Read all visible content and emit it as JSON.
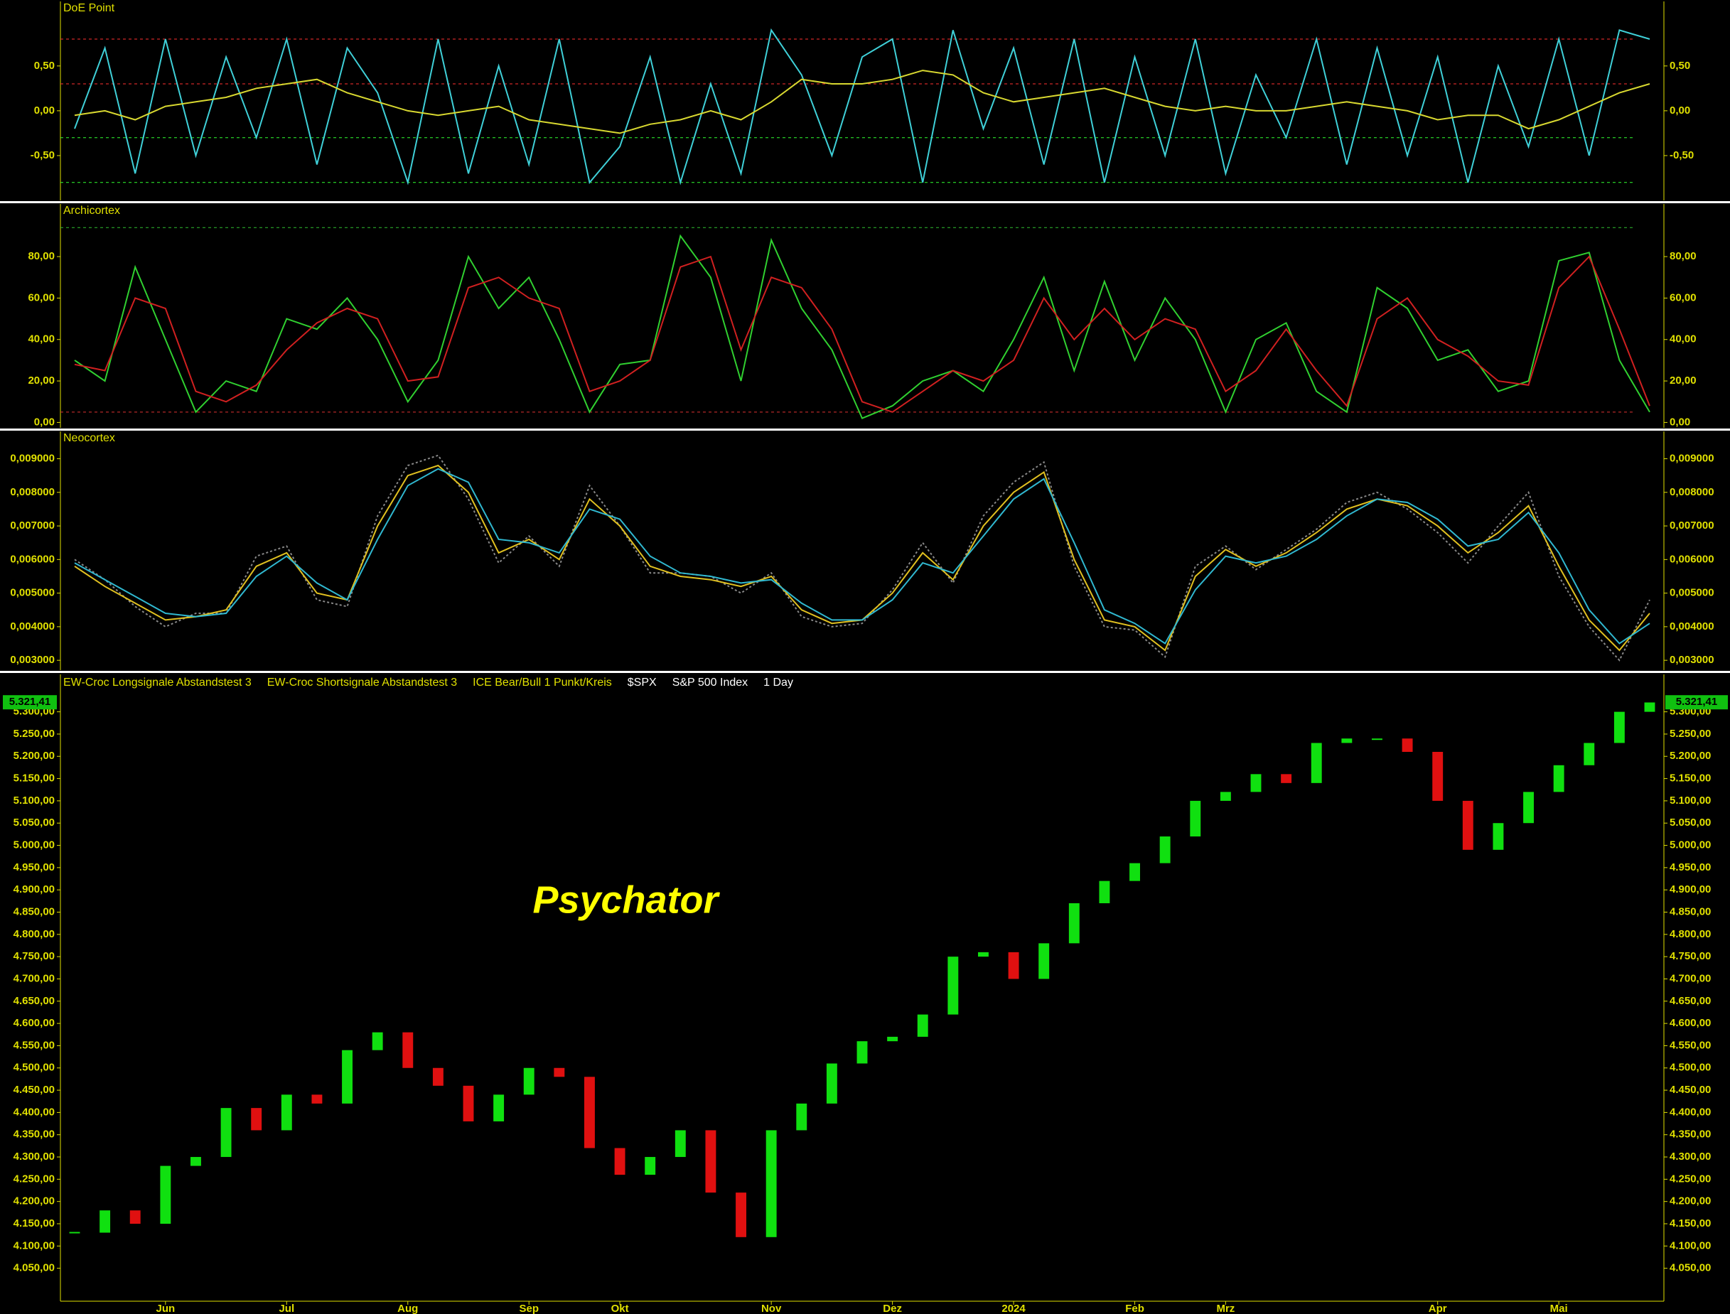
{
  "chart_data": [
    {
      "type": "line",
      "title": "DoE Point",
      "ylim": [
        -1.0,
        1.22
      ],
      "yticks": [
        {
          "value": -0.5,
          "label": "-0,50"
        },
        {
          "value": 0,
          "label": "0,00"
        },
        {
          "value": 0.5,
          "label": "0,50"
        }
      ],
      "levels": [
        {
          "value": 0.8,
          "color": "#ff3030"
        },
        {
          "value": 0.3,
          "color": "#ff3030"
        },
        {
          "value": -0.3,
          "color": "#30ff30"
        },
        {
          "value": -0.8,
          "color": "#30ff30"
        }
      ],
      "series": [
        {
          "color": "#3fd0d8",
          "values": [
            -0.2,
            0.7,
            -0.7,
            0.8,
            -0.5,
            0.6,
            -0.3,
            0.8,
            -0.6,
            0.7,
            0.2,
            -0.8,
            0.8,
            -0.7,
            0.5,
            -0.6,
            0.8,
            -0.8,
            -0.4,
            0.6,
            -0.8,
            0.3,
            -0.7,
            0.9,
            0.4,
            -0.5,
            0.6,
            0.8,
            -0.8,
            0.9,
            -0.2,
            0.7,
            -0.6,
            0.8,
            -0.8,
            0.6,
            -0.5,
            0.8,
            -0.7,
            0.4,
            -0.3,
            0.8,
            -0.6,
            0.7,
            -0.5,
            0.6,
            -0.8,
            0.5,
            -0.4,
            0.8,
            -0.5,
            0.9,
            0.8
          ]
        },
        {
          "color": "#d8d830",
          "values": [
            -0.05,
            0.0,
            -0.1,
            0.05,
            0.1,
            0.15,
            0.25,
            0.3,
            0.35,
            0.2,
            0.1,
            0.0,
            -0.05,
            0.0,
            0.05,
            -0.1,
            -0.15,
            -0.2,
            -0.25,
            -0.15,
            -0.1,
            0.0,
            -0.1,
            0.1,
            0.35,
            0.3,
            0.3,
            0.35,
            0.45,
            0.4,
            0.2,
            0.1,
            0.15,
            0.2,
            0.25,
            0.15,
            0.05,
            0.0,
            0.05,
            0.0,
            0.0,
            0.05,
            0.1,
            0.05,
            0.0,
            -0.1,
            -0.05,
            -0.05,
            -0.2,
            -0.1,
            0.05,
            0.2,
            0.3
          ]
        }
      ]
    },
    {
      "type": "line",
      "title": "Archicortex",
      "ylim": [
        -2.6,
        105.4
      ],
      "yticks": [
        {
          "value": 0,
          "label": "0,00"
        },
        {
          "value": 20,
          "label": "20,00"
        },
        {
          "value": 40,
          "label": "40,00"
        },
        {
          "value": 60,
          "label": "60,00"
        },
        {
          "value": 80,
          "label": "80,00"
        }
      ],
      "levels": [
        {
          "value": 94,
          "color": "#30c030"
        },
        {
          "value": 5,
          "color": "#e03030"
        }
      ],
      "series": [
        {
          "color": "#30d030",
          "values": [
            30,
            20,
            75,
            40,
            5,
            20,
            15,
            50,
            45,
            60,
            40,
            10,
            30,
            80,
            55,
            70,
            40,
            5,
            28,
            30,
            90,
            70,
            20,
            88,
            55,
            35,
            2,
            8,
            20,
            25,
            15,
            40,
            70,
            25,
            68,
            30,
            60,
            40,
            5,
            40,
            48,
            15,
            5,
            65,
            55,
            30,
            35,
            15,
            20,
            78,
            82,
            30,
            5
          ]
        },
        {
          "color": "#d02020",
          "values": [
            28,
            25,
            60,
            55,
            15,
            10,
            18,
            35,
            48,
            55,
            50,
            20,
            22,
            65,
            70,
            60,
            55,
            15,
            20,
            30,
            75,
            80,
            35,
            70,
            65,
            45,
            10,
            5,
            15,
            25,
            20,
            30,
            60,
            40,
            55,
            40,
            50,
            45,
            15,
            25,
            45,
            25,
            8,
            50,
            60,
            40,
            32,
            20,
            18,
            65,
            80,
            45,
            8
          ]
        }
      ]
    },
    {
      "type": "line",
      "title": "Neocortex",
      "ylim": [
        0.002707,
        0.009815
      ],
      "yticks": [
        {
          "value": 0.003,
          "label": "0,003000"
        },
        {
          "value": 0.004,
          "label": "0,004000"
        },
        {
          "value": 0.005,
          "label": "0,005000"
        },
        {
          "value": 0.006,
          "label": "0,006000"
        },
        {
          "value": 0.007,
          "label": "0,007000"
        },
        {
          "value": 0.008,
          "label": "0,008000"
        },
        {
          "value": 0.009,
          "label": "0,009000"
        }
      ],
      "series": [
        {
          "color": "#888888",
          "dash": true,
          "values": [
            0.006,
            0.0054,
            0.0046,
            0.004,
            0.0044,
            0.0044,
            0.0061,
            0.0064,
            0.0048,
            0.0046,
            0.0073,
            0.0088,
            0.0091,
            0.0078,
            0.0059,
            0.0067,
            0.0058,
            0.0082,
            0.007,
            0.0056,
            0.0056,
            0.0055,
            0.005,
            0.0056,
            0.0043,
            0.004,
            0.0041,
            0.0051,
            0.0065,
            0.0053,
            0.0073,
            0.0083,
            0.0089,
            0.0058,
            0.004,
            0.0039,
            0.0031,
            0.0058,
            0.0064,
            0.0057,
            0.0063,
            0.0069,
            0.0077,
            0.008,
            0.0075,
            0.0068,
            0.0059,
            0.007,
            0.008,
            0.0055,
            0.004,
            0.003,
            0.0048
          ]
        },
        {
          "color": "#e0c020",
          "values": [
            0.0058,
            0.0052,
            0.0047,
            0.0042,
            0.0043,
            0.0045,
            0.0058,
            0.0062,
            0.005,
            0.0048,
            0.007,
            0.0085,
            0.0088,
            0.008,
            0.0062,
            0.0066,
            0.006,
            0.0078,
            0.007,
            0.0058,
            0.0055,
            0.0054,
            0.0052,
            0.0055,
            0.0045,
            0.0041,
            0.0042,
            0.005,
            0.0062,
            0.0054,
            0.007,
            0.008,
            0.0086,
            0.006,
            0.0042,
            0.004,
            0.0033,
            0.0055,
            0.0063,
            0.0058,
            0.0062,
            0.0068,
            0.0075,
            0.0078,
            0.0076,
            0.007,
            0.0062,
            0.0068,
            0.0076,
            0.0058,
            0.0042,
            0.0033,
            0.0044
          ]
        },
        {
          "color": "#30b8d0",
          "values": [
            0.0059,
            0.0054,
            0.0049,
            0.0044,
            0.0043,
            0.0044,
            0.0055,
            0.0061,
            0.0053,
            0.0048,
            0.0066,
            0.0082,
            0.0087,
            0.0083,
            0.0066,
            0.0065,
            0.0062,
            0.0075,
            0.0072,
            0.0061,
            0.0056,
            0.0055,
            0.0053,
            0.0054,
            0.0047,
            0.0042,
            0.0042,
            0.0048,
            0.0059,
            0.0056,
            0.0067,
            0.0078,
            0.0084,
            0.0065,
            0.0045,
            0.0041,
            0.0035,
            0.0051,
            0.0061,
            0.0059,
            0.0061,
            0.0066,
            0.0073,
            0.0078,
            0.0077,
            0.0072,
            0.0064,
            0.0066,
            0.0074,
            0.0062,
            0.0045,
            0.0035,
            0.0041
          ]
        }
      ]
    },
    {
      "type": "candlestick",
      "symbol": "$SPX",
      "name": "S&P 500 Index",
      "interval": "1 Day",
      "indicators": [
        "EW-Croc Longsignale Abstandstest 3",
        "EW-Croc Shortsignale Abstandstest 3",
        "ICE Bear/Bull 1 Punkt/Kreis"
      ],
      "watermark": "Psychator",
      "up_color": "#10e010",
      "down_color": "#e01010",
      "last_value": {
        "value": 5321.41,
        "label": "5.321,41"
      },
      "ylim": [
        3976,
        5384
      ],
      "yticks": [
        {
          "value": 4050,
          "label": "4.050,00"
        },
        {
          "value": 4100,
          "label": "4.100,00"
        },
        {
          "value": 4150,
          "label": "4.150,00"
        },
        {
          "value": 4200,
          "label": "4.200,00"
        },
        {
          "value": 4250,
          "label": "4.250,00"
        },
        {
          "value": 4300,
          "label": "4.300,00"
        },
        {
          "value": 4350,
          "label": "4.350,00"
        },
        {
          "value": 4400,
          "label": "4.400,00"
        },
        {
          "value": 4450,
          "label": "4.450,00"
        },
        {
          "value": 4500,
          "label": "4.500,00"
        },
        {
          "value": 4550,
          "label": "4.550,00"
        },
        {
          "value": 4600,
          "label": "4.600,00"
        },
        {
          "value": 4650,
          "label": "4.650,00"
        },
        {
          "value": 4700,
          "label": "4.700,00"
        },
        {
          "value": 4750,
          "label": "4.750,00"
        },
        {
          "value": 4800,
          "label": "4.800,00"
        },
        {
          "value": 4850,
          "label": "4.850,00"
        },
        {
          "value": 4900,
          "label": "4.900,00"
        },
        {
          "value": 4950,
          "label": "4.950,00"
        },
        {
          "value": 5000,
          "label": "5.000,00"
        },
        {
          "value": 5050,
          "label": "5.050,00"
        },
        {
          "value": 5100,
          "label": "5.100,00"
        },
        {
          "value": 5150,
          "label": "5.150,00"
        },
        {
          "value": 5200,
          "label": "5.200,00"
        },
        {
          "value": 5250,
          "label": "5.250,00"
        },
        {
          "value": 5300,
          "label": "5.300,00"
        }
      ],
      "categories": [
        null,
        null,
        null,
        "Jun",
        null,
        null,
        null,
        "Jul",
        null,
        null,
        null,
        "Aug",
        null,
        null,
        null,
        "Sep",
        null,
        null,
        "Okt",
        null,
        null,
        null,
        null,
        "Nov",
        null,
        null,
        null,
        "Dez",
        null,
        null,
        null,
        "2024",
        null,
        null,
        null,
        "Feb",
        null,
        null,
        "Mrz",
        null,
        null,
        null,
        null,
        null,
        null,
        "Apr",
        null,
        null,
        null,
        "Mai",
        null,
        null,
        null
      ],
      "values": [
        4130,
        4180,
        4150,
        4280,
        4300,
        4410,
        4360,
        4440,
        4420,
        4540,
        4580,
        4500,
        4460,
        4380,
        4440,
        4500,
        4480,
        4320,
        4260,
        4300,
        4360,
        4220,
        4120,
        4360,
        4420,
        4510,
        4560,
        4570,
        4620,
        4750,
        4760,
        4700,
        4780,
        4870,
        4920,
        4960,
        5020,
        5100,
        5120,
        5160,
        5140,
        5230,
        5240,
        5240,
        5210,
        5100,
        4990,
        5050,
        5120,
        5180,
        5230,
        5300,
        5321
      ]
    }
  ]
}
